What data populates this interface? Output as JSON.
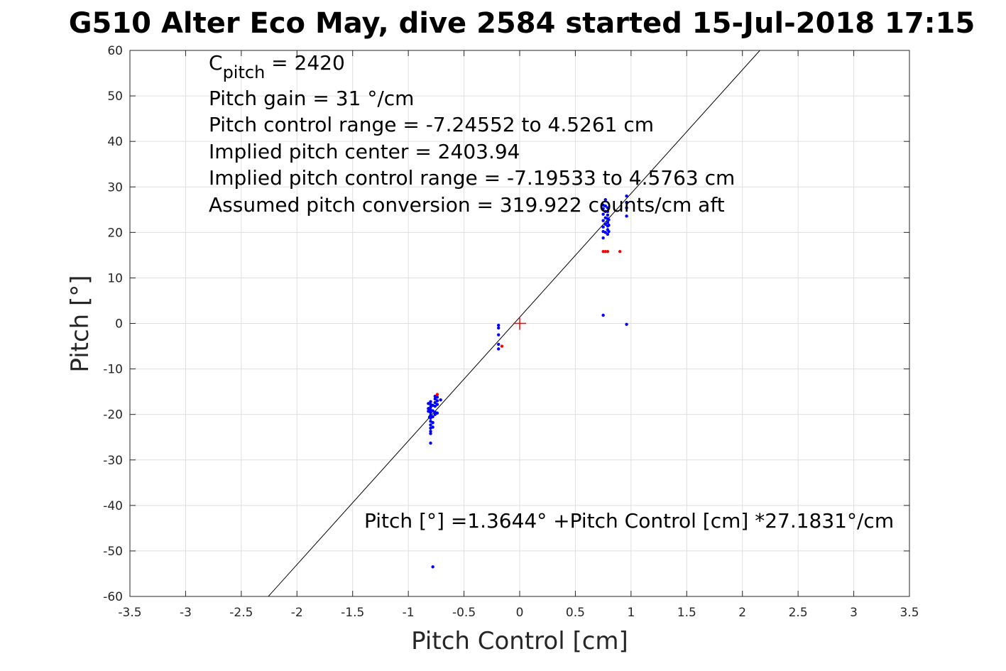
{
  "chart_data": {
    "type": "scatter",
    "title": "G510 Alter Eco May, dive 2584 started 15-Jul-2018 17:15",
    "xlabel": "Pitch Control [cm]",
    "ylabel": "Pitch [°]",
    "xlim": [
      -3.5,
      3.5
    ],
    "ylim": [
      -60,
      60
    ],
    "xticks": [
      -3.5,
      -3,
      -2.5,
      -2,
      -1.5,
      -1,
      -0.5,
      0,
      0.5,
      1,
      1.5,
      2,
      2.5,
      3,
      3.5
    ],
    "yticks": [
      -60,
      -50,
      -40,
      -30,
      -20,
      -10,
      0,
      10,
      20,
      30,
      40,
      50,
      60
    ],
    "grid": true,
    "colors": {
      "good": "#0000ff",
      "bad": "#ff0000",
      "fit": "#000000",
      "center": "#ff0000"
    },
    "annotations": {
      "c_pitch_symbol": "C",
      "c_pitch_sub": "pitch",
      "c_pitch_value": " = 2420",
      "pitch_gain": "Pitch gain = 31 °/cm",
      "pitch_control_range": "Pitch control range = -7.24552 to 4.5261 cm",
      "implied_center": "Implied pitch center = 2403.94",
      "implied_range": "Implied pitch control range = -7.19533 to 4.5763 cm",
      "assumed_conversion": "Assumed pitch conversion = 319.922 counts/cm aft",
      "fit_equation": "Pitch [°] =1.3644° +Pitch Control [cm] *27.1831°/cm"
    },
    "fit": {
      "intercept": 1.3644,
      "slope": 27.1831
    },
    "center_marker": {
      "x": 0,
      "y": 0
    },
    "series": [
      {
        "name": "",
        "role": "good",
        "points": [
          [
            -0.8,
            -17.2
          ],
          [
            -0.8,
            -17.8
          ],
          [
            -0.8,
            -18.4
          ],
          [
            -0.8,
            -19.0
          ],
          [
            -0.8,
            -19.6
          ],
          [
            -0.8,
            -20.2
          ],
          [
            -0.8,
            -20.8
          ],
          [
            -0.8,
            -21.5
          ],
          [
            -0.8,
            -22.3
          ],
          [
            -0.8,
            -23.0
          ],
          [
            -0.8,
            -23.7
          ],
          [
            -0.8,
            -24.2
          ],
          [
            -0.8,
            -26.3
          ],
          [
            -0.78,
            -18.0
          ],
          [
            -0.78,
            -19.2
          ],
          [
            -0.78,
            -20.5
          ],
          [
            -0.78,
            -21.8
          ],
          [
            -0.78,
            -22.8
          ],
          [
            -0.76,
            -16.0
          ],
          [
            -0.76,
            -16.6
          ],
          [
            -0.76,
            -17.4
          ],
          [
            -0.76,
            -18.2
          ],
          [
            -0.76,
            -19.5
          ],
          [
            -0.76,
            -20.0
          ],
          [
            -0.74,
            -16.2
          ],
          [
            -0.74,
            -17.0
          ],
          [
            -0.74,
            -17.8
          ],
          [
            -0.74,
            -19.7
          ],
          [
            -0.82,
            -17.6
          ],
          [
            -0.82,
            -18.7
          ],
          [
            -0.82,
            -19.3
          ],
          [
            -0.81,
            -20.6
          ],
          [
            -0.71,
            -16.8
          ],
          [
            -0.78,
            -53.5
          ],
          [
            -0.19,
            -0.4
          ],
          [
            -0.19,
            -1.0
          ],
          [
            -0.19,
            -2.5
          ],
          [
            -0.19,
            -4.6
          ],
          [
            -0.19,
            -5.6
          ],
          [
            0.75,
            1.8
          ],
          [
            0.96,
            -0.2
          ],
          [
            0.75,
            18.8
          ],
          [
            0.75,
            20.2
          ],
          [
            0.75,
            21.2
          ],
          [
            0.75,
            22.6
          ],
          [
            0.75,
            24.0
          ],
          [
            0.75,
            25.2
          ],
          [
            0.75,
            26.0
          ],
          [
            0.77,
            20.0
          ],
          [
            0.77,
            21.8
          ],
          [
            0.77,
            23.2
          ],
          [
            0.77,
            24.6
          ],
          [
            0.77,
            25.8
          ],
          [
            0.77,
            27.2
          ],
          [
            0.79,
            19.6
          ],
          [
            0.79,
            20.6
          ],
          [
            0.79,
            21.4
          ],
          [
            0.79,
            22.2
          ],
          [
            0.79,
            23.0
          ],
          [
            0.79,
            23.8
          ],
          [
            0.79,
            24.6
          ],
          [
            0.79,
            25.4
          ],
          [
            0.8,
            20.2
          ],
          [
            0.8,
            21.6
          ],
          [
            0.8,
            22.8
          ],
          [
            0.96,
            23.6
          ],
          [
            0.96,
            25.4
          ],
          [
            0.96,
            26.6
          ],
          [
            0.96,
            28.0
          ]
        ]
      },
      {
        "name": "",
        "role": "bad",
        "points": [
          [
            -0.74,
            -15.6
          ],
          [
            -0.16,
            -5.0
          ],
          [
            0.75,
            15.8
          ],
          [
            0.77,
            15.8
          ],
          [
            0.79,
            15.8
          ],
          [
            0.9,
            15.8
          ]
        ]
      }
    ]
  }
}
